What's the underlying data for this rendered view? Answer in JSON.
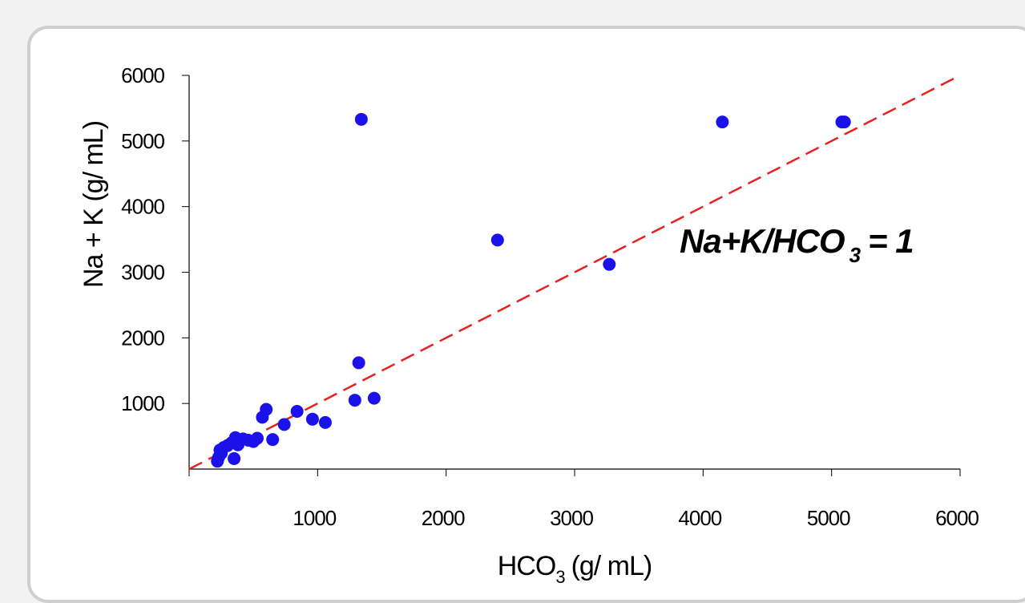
{
  "chart_data": {
    "type": "scatter",
    "xlabel_main": "HCO",
    "xlabel_sub": "3",
    "xlabel_unit": "(g/ mL)",
    "ylabel": "Na + K (g/ mL)",
    "xlim": [
      0,
      6000
    ],
    "ylim": [
      0,
      6000
    ],
    "x_ticks": [
      1000,
      2000,
      3000,
      4000,
      5000,
      6000
    ],
    "y_ticks": [
      1000,
      2000,
      3000,
      4000,
      5000,
      6000
    ],
    "annotation_main": "Na+K/HCO",
    "annotation_sub": "3",
    "annotation_tail": "= 1",
    "point_color": "#1a12e8",
    "line_color": "#e82020",
    "reference_line": {
      "style": "dashed",
      "from": [
        0,
        0
      ],
      "to": [
        6000,
        6000
      ]
    },
    "points": [
      {
        "x": 220,
        "y": 120
      },
      {
        "x": 230,
        "y": 180
      },
      {
        "x": 240,
        "y": 290
      },
      {
        "x": 250,
        "y": 240
      },
      {
        "x": 270,
        "y": 330
      },
      {
        "x": 300,
        "y": 360
      },
      {
        "x": 330,
        "y": 400
      },
      {
        "x": 350,
        "y": 160
      },
      {
        "x": 360,
        "y": 480
      },
      {
        "x": 380,
        "y": 370
      },
      {
        "x": 420,
        "y": 460
      },
      {
        "x": 460,
        "y": 440
      },
      {
        "x": 500,
        "y": 420
      },
      {
        "x": 530,
        "y": 470
      },
      {
        "x": 570,
        "y": 790
      },
      {
        "x": 600,
        "y": 910
      },
      {
        "x": 650,
        "y": 450
      },
      {
        "x": 740,
        "y": 680
      },
      {
        "x": 840,
        "y": 880
      },
      {
        "x": 960,
        "y": 760
      },
      {
        "x": 1060,
        "y": 710
      },
      {
        "x": 1290,
        "y": 1050
      },
      {
        "x": 1320,
        "y": 1620
      },
      {
        "x": 1340,
        "y": 5330
      },
      {
        "x": 1440,
        "y": 1080
      },
      {
        "x": 2400,
        "y": 3490
      },
      {
        "x": 3270,
        "y": 3120
      },
      {
        "x": 4150,
        "y": 5290
      },
      {
        "x": 5080,
        "y": 5290
      },
      {
        "x": 5100,
        "y": 5290
      }
    ]
  }
}
